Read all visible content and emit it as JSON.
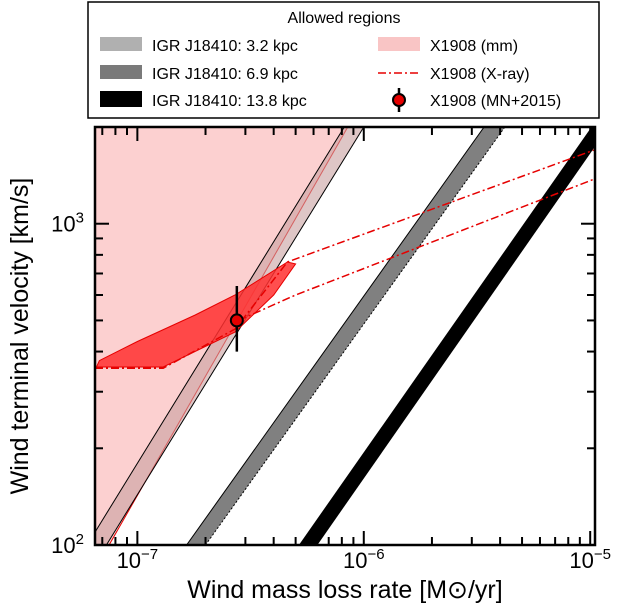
{
  "chart_data": {
    "type": "area",
    "xlabel": "Wind mass loss rate [M⊙/yr]",
    "ylabel": "Wind terminal velocity [km/s]",
    "xscale": "log",
    "yscale": "log",
    "xlim": [
      6.5e-08,
      1.05e-05
    ],
    "ylim": [
      100,
      2000
    ],
    "x_ticks": [
      {
        "value": 1e-07,
        "base": "10",
        "exp": "−7"
      },
      {
        "value": 1e-06,
        "base": "10",
        "exp": "−6"
      },
      {
        "value": 1e-05,
        "base": "10",
        "exp": "−5"
      }
    ],
    "y_ticks": [
      {
        "value": 100,
        "base": "10",
        "exp": "2"
      },
      {
        "value": 1000,
        "base": "10",
        "exp": "3"
      }
    ],
    "legend": {
      "title": "Allowed regions",
      "placement": "top",
      "entries": [
        {
          "key": "igr32",
          "label": "IGR J18410: 3.2 kpc",
          "style": "patch",
          "color": "#b0b0b0"
        },
        {
          "key": "mm",
          "label": "X1908 (mm)",
          "style": "patch",
          "color": "#f9c5c5"
        },
        {
          "key": "igr69",
          "label": "IGR J18410: 6.9 kpc",
          "style": "patch",
          "color": "#7a7a7a"
        },
        {
          "key": "xray",
          "label": "X1908 (X-ray)",
          "style": "dashdot",
          "color": "#e60000"
        },
        {
          "key": "igr138",
          "label": "IGR J18410: 13.8 kpc",
          "style": "patch",
          "color": "#000000"
        },
        {
          "key": "mn2015",
          "label": "X1908 (MN+2015)",
          "style": "marker",
          "color": "#e60000"
        }
      ]
    },
    "series": [
      {
        "name": "IGR J18410: 3.2 kpc",
        "kind": "band",
        "color": "#c8a0a0",
        "lower_edge": [
          [
            7.3e-08,
            100
          ],
          [
            1e-06,
            2000
          ]
        ],
        "upper_edge": [
          [
            6e-08,
            100
          ],
          [
            8.2e-07,
            2000
          ]
        ]
      },
      {
        "name": "IGR J18410: 6.9 kpc",
        "kind": "band",
        "color": "#808080",
        "lower_edge": [
          [
            2e-07,
            100
          ],
          [
            4.2e-06,
            2000
          ]
        ],
        "upper_edge": [
          [
            1.65e-07,
            100
          ],
          [
            3.4e-06,
            2000
          ]
        ]
      },
      {
        "name": "IGR J18410: 13.8 kpc",
        "kind": "band",
        "color": "#000000",
        "lower_edge": [
          [
            6.2e-07,
            100
          ],
          [
            1.2e-05,
            2000
          ]
        ],
        "upper_edge": [
          [
            5.2e-07,
            100
          ],
          [
            1.02e-05,
            2000
          ]
        ]
      },
      {
        "name": "X1908 (mm)",
        "kind": "region",
        "color": "#fcd0d0",
        "points": [
          [
            6.5e-08,
            100
          ],
          [
            6.5e-08,
            2000
          ],
          [
            8.5e-07,
            2000
          ],
          [
            7.5e-08,
            100
          ]
        ]
      },
      {
        "name": "X1908 (X-ray)",
        "kind": "region",
        "color": "#ff3030",
        "points": [
          [
            6.5e-08,
            350
          ],
          [
            6.6e-08,
            358
          ],
          [
            1.3e-07,
            358
          ],
          [
            2.7e-07,
            460
          ],
          [
            4e-07,
            600
          ],
          [
            5e-07,
            750
          ],
          [
            4.6e-07,
            760
          ],
          [
            2.7e-07,
            600
          ],
          [
            1.8e-07,
            520
          ],
          [
            1e-07,
            430
          ],
          [
            6.8e-08,
            375
          ]
        ]
      },
      {
        "name": "X1908 (X-ray)",
        "kind": "dashdot",
        "color": "#e60000",
        "points": [
          [
            6.5e-08,
            355
          ],
          [
            1.3e-07,
            355
          ],
          [
            2.7e-07,
            470
          ],
          [
            4.6e-07,
            760
          ],
          [
            1.05e-05,
            1700
          ]
        ]
      },
      {
        "name": "X1908 (X-ray)",
        "kind": "dashdot",
        "color": "#e60000",
        "points": [
          [
            2.8e-07,
            500
          ],
          [
            5e-07,
            600
          ],
          [
            1.05e-05,
            1380
          ]
        ]
      },
      {
        "name": "X1908 (MN+2015)",
        "kind": "point",
        "color": "#e60000",
        "x": 2.75e-07,
        "y": 500,
        "yerr": [
          400,
          640
        ]
      }
    ]
  }
}
